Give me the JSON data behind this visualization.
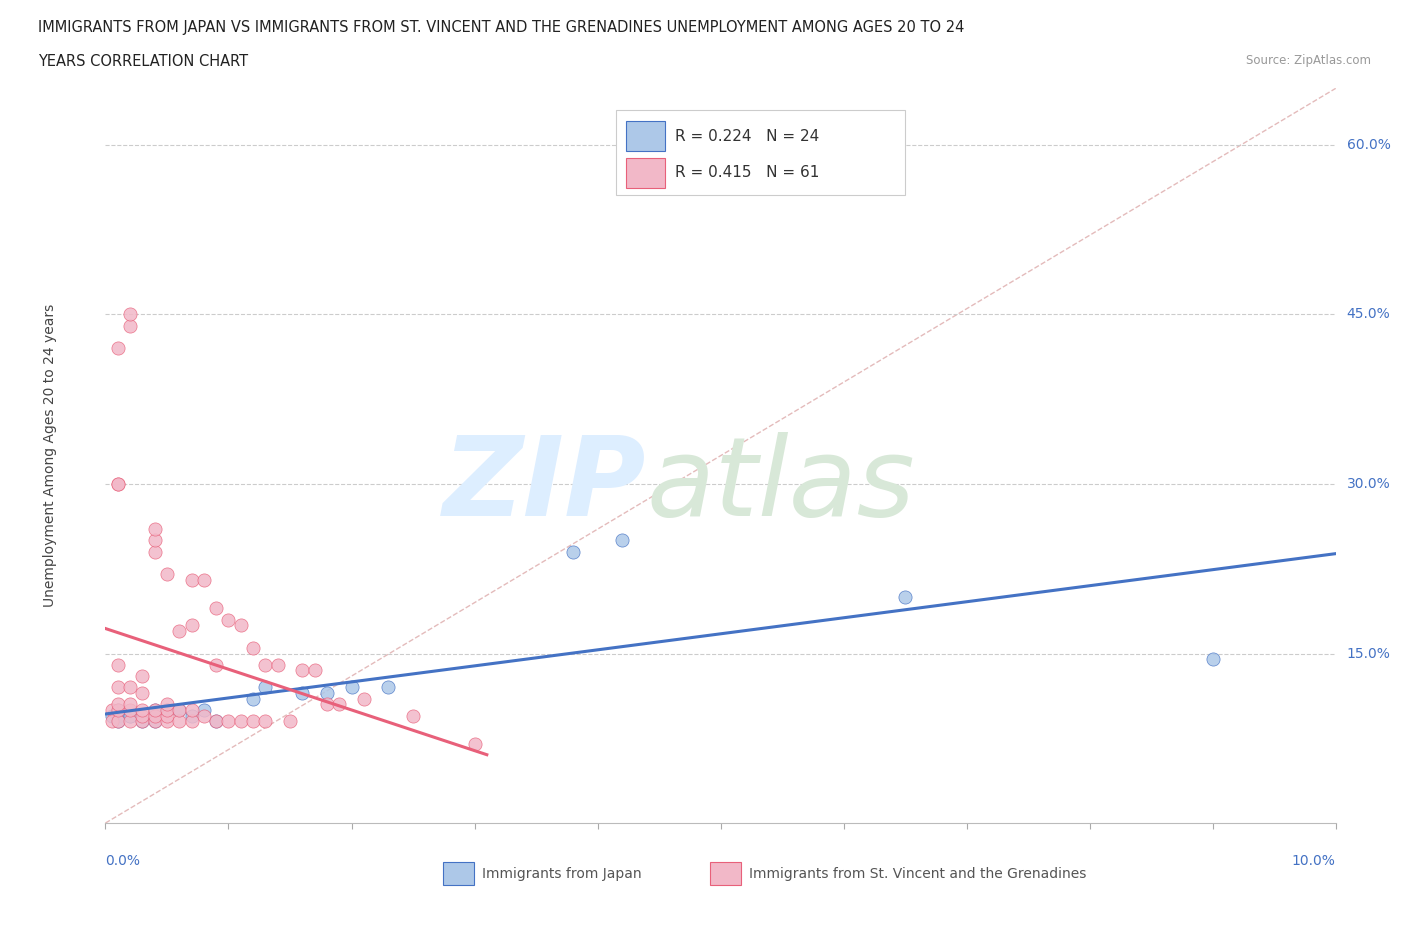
{
  "title_line1": "IMMIGRANTS FROM JAPAN VS IMMIGRANTS FROM ST. VINCENT AND THE GRENADINES UNEMPLOYMENT AMONG AGES 20 TO 24",
  "title_line2": "YEARS CORRELATION CHART",
  "source": "Source: ZipAtlas.com",
  "ylabel": "Unemployment Among Ages 20 to 24 years",
  "legend1_label": "Immigrants from Japan",
  "legend2_label": "Immigrants from St. Vincent and the Grenadines",
  "R1": 0.224,
  "N1": 24,
  "R2": 0.415,
  "N2": 61,
  "color_japan": "#adc8e8",
  "color_stvincent": "#f2b8c8",
  "color_japan_line": "#4472c4",
  "color_stvincent_line": "#e8607a",
  "japan_x": [
    0.0005,
    0.001,
    0.001,
    0.001,
    0.002,
    0.002,
    0.003,
    0.004,
    0.004,
    0.005,
    0.006,
    0.007,
    0.008,
    0.009,
    0.012,
    0.013,
    0.016,
    0.018,
    0.02,
    0.023,
    0.038,
    0.042,
    0.065,
    0.09
  ],
  "japan_y": [
    0.095,
    0.1,
    0.095,
    0.09,
    0.095,
    0.095,
    0.09,
    0.1,
    0.09,
    0.1,
    0.1,
    0.095,
    0.1,
    0.09,
    0.11,
    0.12,
    0.115,
    0.115,
    0.12,
    0.12,
    0.24,
    0.25,
    0.2,
    0.145
  ],
  "stvincent_x": [
    0.0005,
    0.0005,
    0.001,
    0.001,
    0.001,
    0.001,
    0.001,
    0.001,
    0.001,
    0.001,
    0.002,
    0.002,
    0.002,
    0.002,
    0.002,
    0.002,
    0.003,
    0.003,
    0.003,
    0.003,
    0.003,
    0.004,
    0.004,
    0.004,
    0.004,
    0.004,
    0.004,
    0.005,
    0.005,
    0.005,
    0.005,
    0.005,
    0.006,
    0.006,
    0.006,
    0.007,
    0.007,
    0.007,
    0.007,
    0.008,
    0.008,
    0.009,
    0.009,
    0.009,
    0.01,
    0.01,
    0.011,
    0.011,
    0.012,
    0.012,
    0.013,
    0.013,
    0.014,
    0.015,
    0.016,
    0.017,
    0.018,
    0.019,
    0.021,
    0.025,
    0.03
  ],
  "stvincent_y": [
    0.1,
    0.09,
    0.09,
    0.1,
    0.105,
    0.12,
    0.14,
    0.3,
    0.3,
    0.42,
    0.09,
    0.1,
    0.105,
    0.12,
    0.44,
    0.45,
    0.09,
    0.095,
    0.1,
    0.115,
    0.13,
    0.09,
    0.095,
    0.1,
    0.24,
    0.25,
    0.26,
    0.09,
    0.095,
    0.1,
    0.105,
    0.22,
    0.09,
    0.1,
    0.17,
    0.09,
    0.1,
    0.175,
    0.215,
    0.095,
    0.215,
    0.09,
    0.14,
    0.19,
    0.09,
    0.18,
    0.09,
    0.175,
    0.09,
    0.155,
    0.09,
    0.14,
    0.14,
    0.09,
    0.135,
    0.135,
    0.105,
    0.105,
    0.11,
    0.095,
    0.07
  ],
  "ref_line_x": [
    0.0,
    0.1
  ],
  "ref_line_y": [
    0.0,
    0.65
  ],
  "ylim": [
    0.0,
    0.65
  ],
  "xlim": [
    0.0,
    0.1
  ],
  "yticks": [
    0.15,
    0.3,
    0.45,
    0.6
  ],
  "ytick_labels": [
    "15.0%",
    "30.0%",
    "45.0%",
    "60.0%"
  ],
  "xticks": [
    0.0,
    0.01,
    0.02,
    0.03,
    0.04,
    0.05,
    0.06,
    0.07,
    0.08,
    0.09,
    0.1
  ]
}
